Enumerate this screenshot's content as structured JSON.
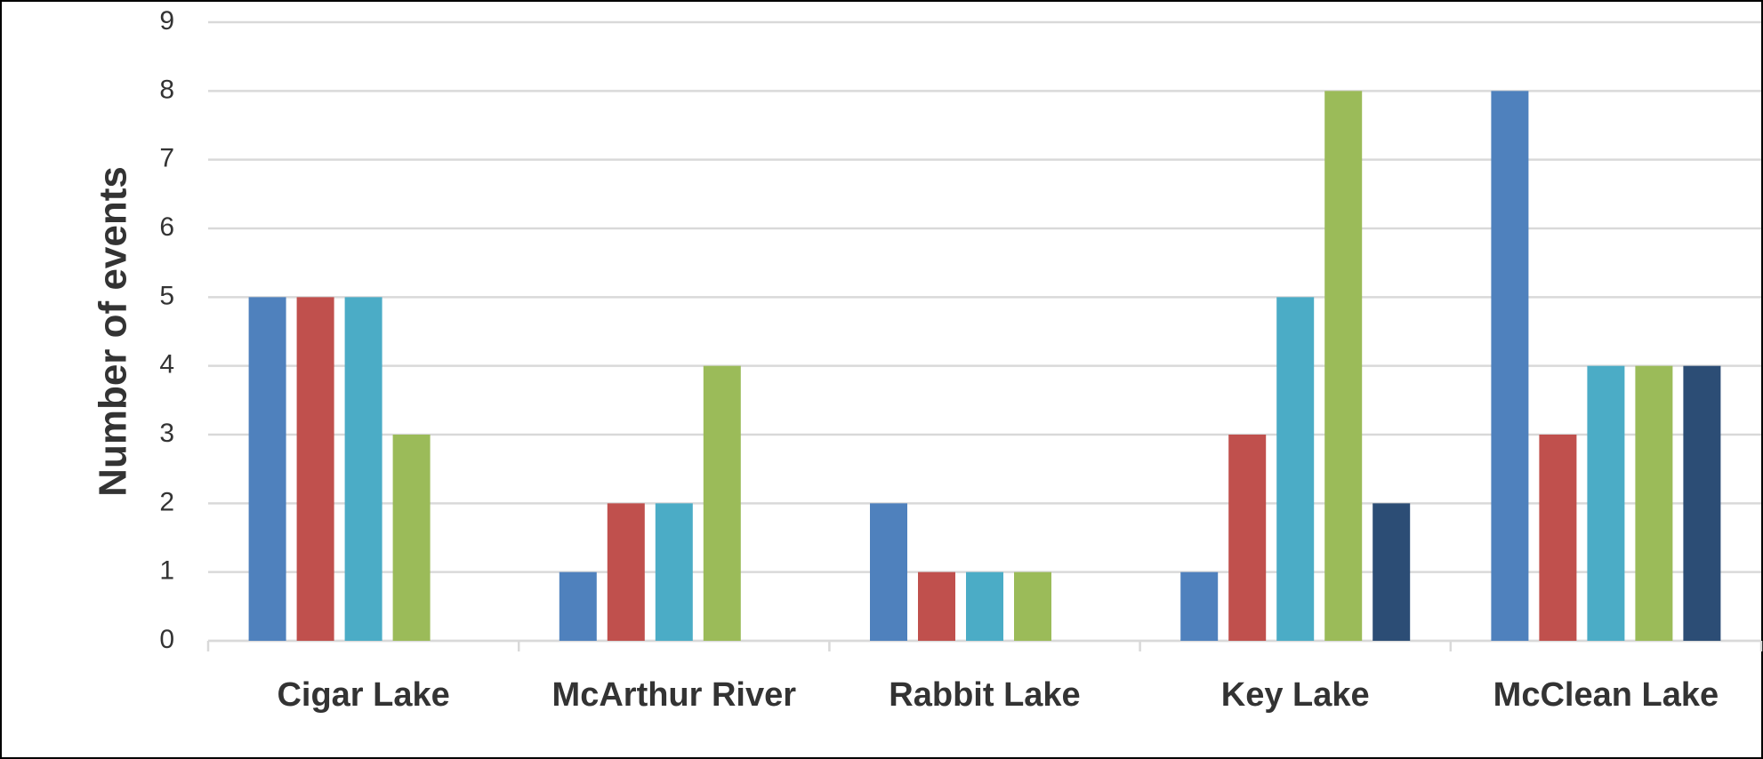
{
  "chart_data": {
    "type": "bar",
    "y_label": "Number of events",
    "categories": [
      "Cigar Lake",
      "McArthur River",
      "Rabbit Lake",
      "Key Lake",
      "McClean Lake"
    ],
    "series": [
      {
        "color": "#4f81bd",
        "values": [
          5,
          1,
          2,
          1,
          8
        ]
      },
      {
        "color": "#c0504d",
        "values": [
          5,
          2,
          1,
          3,
          3
        ]
      },
      {
        "color": "#4bacc6",
        "values": [
          5,
          2,
          1,
          5,
          4
        ]
      },
      {
        "color": "#9bbb59",
        "values": [
          3,
          4,
          1,
          8,
          4
        ]
      },
      {
        "color": "#2c4d75",
        "values": [
          null,
          null,
          null,
          2,
          4
        ]
      }
    ],
    "ylim": [
      0,
      9
    ],
    "yticks": [
      0,
      1,
      2,
      3,
      4,
      5,
      6,
      7,
      8,
      9
    ],
    "grid": true
  }
}
